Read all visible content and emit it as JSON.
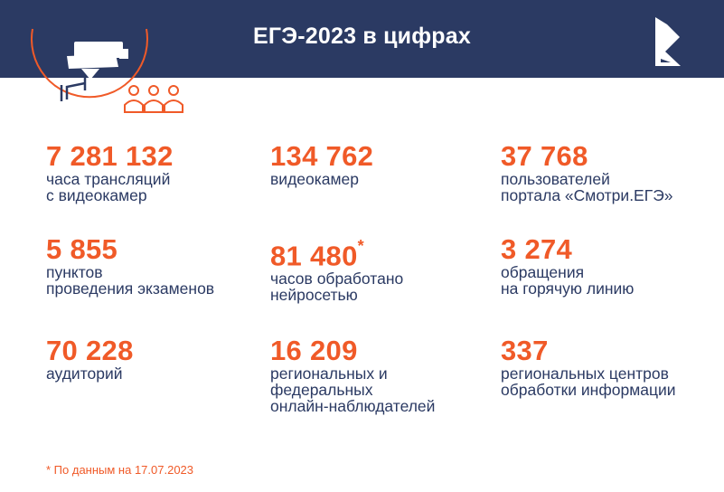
{
  "header": {
    "title": "ЕГЭ-2023 в цифрах"
  },
  "colors": {
    "header_bg": "#2b3a63",
    "accent": "#f05a28",
    "text": "#2b3a63"
  },
  "icons": [
    "surveillance-camera-icon",
    "people-icon",
    "brand-logo-icon"
  ],
  "stats": [
    {
      "value": "7 281 132",
      "line1": "часа трансляций",
      "line2": "с видеокамер",
      "line3": ""
    },
    {
      "value": "134 762",
      "line1": "видеокамер",
      "line2": "",
      "line3": ""
    },
    {
      "value": "37 768",
      "line1": "пользователей",
      "line2": "портала «Смотри.ЕГЭ»",
      "line3": ""
    },
    {
      "value": "5 855",
      "line1": "пунктов",
      "line2": "проведения экзаменов",
      "line3": ""
    },
    {
      "value": "81 480",
      "marker": "*",
      "line1": "часов обработано",
      "line2": "нейросетью",
      "line3": ""
    },
    {
      "value": "3 274",
      "line1": "обращения",
      "line2": "на горячую линию",
      "line3": ""
    },
    {
      "value": "70 228",
      "line1": "аудиторий",
      "line2": "",
      "line3": ""
    },
    {
      "value": "16 209",
      "line1": "региональных и",
      "line2": "федеральных",
      "line3": "онлайн-наблюдателей"
    },
    {
      "value": "337",
      "line1": "региональных центров",
      "line2": "обработки информации",
      "line3": ""
    }
  ],
  "footnote": "* По данным на 17.07.2023"
}
